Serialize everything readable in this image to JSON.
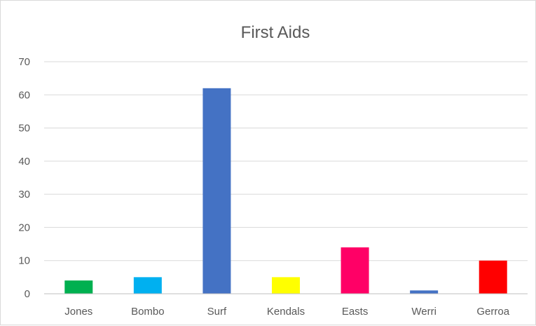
{
  "chart_data": {
    "type": "bar",
    "title": "First Aids",
    "xlabel": "",
    "ylabel": "",
    "categories": [
      "Jones",
      "Bombo",
      "Surf",
      "Kendals",
      "Easts",
      "Werri",
      "Gerroa"
    ],
    "values": [
      4,
      5,
      62,
      5,
      14,
      1,
      10
    ],
    "colors": [
      "#00b050",
      "#00b0f0",
      "#4472c4",
      "#ffff00",
      "#ff0066",
      "#4472c4",
      "#ff0000"
    ],
    "ylim": [
      0,
      70
    ],
    "yticks": [
      0,
      10,
      20,
      30,
      40,
      50,
      60,
      70
    ],
    "grid": true,
    "legend": "none"
  }
}
